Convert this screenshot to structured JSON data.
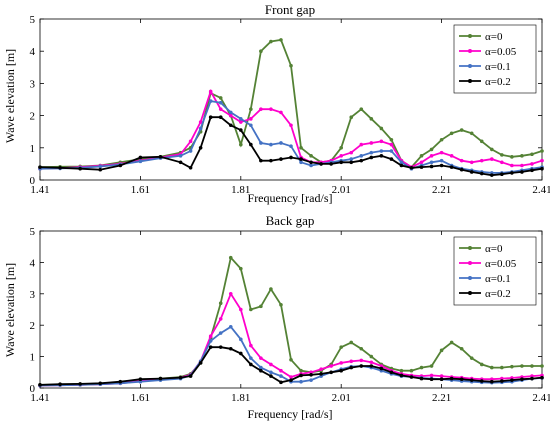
{
  "chart_data": [
    {
      "type": "line",
      "title": "Front gap",
      "xlabel": "Frequency [rad/s]",
      "ylabel": "Wave elevation [m]",
      "xlim": [
        1.41,
        2.41
      ],
      "ylim": [
        0,
        5
      ],
      "xticks": [
        "1.41",
        "1.61",
        "1.81",
        "2.01",
        "2.21",
        "2.41"
      ],
      "yticks": [
        "0",
        "1",
        "2",
        "3",
        "4",
        "5"
      ],
      "legend_position": "top-right",
      "x": [
        1.41,
        1.45,
        1.49,
        1.53,
        1.57,
        1.61,
        1.65,
        1.69,
        1.71,
        1.73,
        1.75,
        1.77,
        1.79,
        1.81,
        1.83,
        1.85,
        1.87,
        1.89,
        1.91,
        1.93,
        1.95,
        1.97,
        1.99,
        2.01,
        2.03,
        2.05,
        2.07,
        2.09,
        2.11,
        2.13,
        2.15,
        2.17,
        2.19,
        2.21,
        2.23,
        2.25,
        2.27,
        2.29,
        2.31,
        2.33,
        2.35,
        2.37,
        2.39,
        2.41
      ],
      "series": [
        {
          "name": "α=0",
          "color": "#548235",
          "values": [
            0.4,
            0.41,
            0.42,
            0.45,
            0.55,
            0.65,
            0.72,
            0.85,
            1.0,
            1.5,
            2.7,
            2.55,
            2.0,
            1.1,
            2.2,
            4.0,
            4.3,
            4.35,
            3.55,
            1.0,
            0.75,
            0.55,
            0.6,
            1.0,
            1.95,
            2.2,
            1.9,
            1.6,
            1.25,
            0.6,
            0.4,
            0.75,
            0.95,
            1.25,
            1.45,
            1.55,
            1.45,
            1.2,
            0.95,
            0.78,
            0.72,
            0.75,
            0.8,
            0.9
          ]
        },
        {
          "name": "α=0.05",
          "color": "#ff00cc",
          "values": [
            0.35,
            0.37,
            0.4,
            0.44,
            0.5,
            0.6,
            0.7,
            0.8,
            1.2,
            1.8,
            2.75,
            2.2,
            2.0,
            1.8,
            1.9,
            2.2,
            2.2,
            2.1,
            1.7,
            0.7,
            0.55,
            0.55,
            0.6,
            0.75,
            0.85,
            1.1,
            1.15,
            1.2,
            1.1,
            0.6,
            0.4,
            0.55,
            0.75,
            0.85,
            0.75,
            0.6,
            0.55,
            0.6,
            0.65,
            0.55,
            0.45,
            0.45,
            0.5,
            0.6
          ]
        },
        {
          "name": "α=0.1",
          "color": "#4472c4",
          "values": [
            0.35,
            0.36,
            0.38,
            0.42,
            0.48,
            0.58,
            0.68,
            0.75,
            0.9,
            1.6,
            2.45,
            2.4,
            2.1,
            1.9,
            1.7,
            1.15,
            1.1,
            1.15,
            1.05,
            0.55,
            0.45,
            0.5,
            0.55,
            0.6,
            0.65,
            0.75,
            0.85,
            0.9,
            0.9,
            0.55,
            0.35,
            0.45,
            0.55,
            0.6,
            0.45,
            0.35,
            0.3,
            0.25,
            0.22,
            0.22,
            0.25,
            0.3,
            0.35,
            0.4
          ]
        },
        {
          "name": "α=0.2",
          "color": "#000000",
          "values": [
            0.4,
            0.38,
            0.35,
            0.32,
            0.45,
            0.7,
            0.72,
            0.55,
            0.38,
            1.0,
            1.95,
            1.95,
            1.7,
            1.55,
            1.1,
            0.6,
            0.6,
            0.65,
            0.7,
            0.65,
            0.55,
            0.5,
            0.5,
            0.55,
            0.55,
            0.6,
            0.7,
            0.75,
            0.65,
            0.45,
            0.38,
            0.4,
            0.42,
            0.45,
            0.4,
            0.32,
            0.25,
            0.2,
            0.15,
            0.18,
            0.22,
            0.25,
            0.3,
            0.35
          ]
        }
      ]
    },
    {
      "type": "line",
      "title": "Back gap",
      "xlabel": "Frequency [rad/s]",
      "ylabel": "Wave elevation [m]",
      "xlim": [
        1.41,
        2.41
      ],
      "ylim": [
        0,
        5
      ],
      "xticks": [
        "1.41",
        "1.61",
        "1.81",
        "2.01",
        "2.21",
        "2.41"
      ],
      "yticks": [
        "0",
        "1",
        "2",
        "3",
        "4",
        "5"
      ],
      "legend_position": "top-right",
      "x": [
        1.41,
        1.45,
        1.49,
        1.53,
        1.57,
        1.61,
        1.65,
        1.69,
        1.71,
        1.73,
        1.75,
        1.77,
        1.79,
        1.81,
        1.83,
        1.85,
        1.87,
        1.89,
        1.91,
        1.93,
        1.95,
        1.97,
        1.99,
        2.01,
        2.03,
        2.05,
        2.07,
        2.09,
        2.11,
        2.13,
        2.15,
        2.17,
        2.19,
        2.21,
        2.23,
        2.25,
        2.27,
        2.29,
        2.31,
        2.33,
        2.35,
        2.37,
        2.39,
        2.41
      ],
      "series": [
        {
          "name": "α=0",
          "color": "#548235",
          "values": [
            0.1,
            0.11,
            0.12,
            0.14,
            0.18,
            0.25,
            0.3,
            0.35,
            0.45,
            0.8,
            1.6,
            2.7,
            4.15,
            3.8,
            2.5,
            2.6,
            3.15,
            2.65,
            0.9,
            0.55,
            0.5,
            0.55,
            0.75,
            1.3,
            1.45,
            1.25,
            1.0,
            0.75,
            0.62,
            0.55,
            0.55,
            0.65,
            0.7,
            1.2,
            1.45,
            1.25,
            0.95,
            0.75,
            0.65,
            0.65,
            0.68,
            0.7,
            0.7,
            0.7
          ]
        },
        {
          "name": "α=0.05",
          "color": "#ff00cc",
          "values": [
            0.08,
            0.09,
            0.1,
            0.12,
            0.15,
            0.22,
            0.28,
            0.33,
            0.42,
            0.85,
            1.65,
            2.2,
            3.0,
            2.5,
            1.35,
            0.95,
            0.75,
            0.55,
            0.35,
            0.45,
            0.5,
            0.6,
            0.7,
            0.8,
            0.85,
            0.88,
            0.82,
            0.7,
            0.55,
            0.45,
            0.4,
            0.38,
            0.4,
            0.38,
            0.35,
            0.33,
            0.3,
            0.28,
            0.28,
            0.3,
            0.32,
            0.35,
            0.38,
            0.4
          ]
        },
        {
          "name": "α=0.1",
          "color": "#4472c4",
          "values": [
            0.08,
            0.09,
            0.1,
            0.12,
            0.15,
            0.2,
            0.25,
            0.3,
            0.4,
            0.85,
            1.5,
            1.75,
            1.95,
            1.55,
            0.95,
            0.65,
            0.5,
            0.38,
            0.2,
            0.2,
            0.25,
            0.38,
            0.5,
            0.6,
            0.68,
            0.7,
            0.65,
            0.55,
            0.45,
            0.38,
            0.35,
            0.32,
            0.3,
            0.28,
            0.25,
            0.22,
            0.2,
            0.18,
            0.17,
            0.18,
            0.2,
            0.25,
            0.3,
            0.32
          ]
        },
        {
          "name": "α=0.2",
          "color": "#000000",
          "values": [
            0.1,
            0.12,
            0.13,
            0.15,
            0.2,
            0.28,
            0.3,
            0.33,
            0.38,
            0.8,
            1.3,
            1.3,
            1.25,
            1.1,
            0.75,
            0.55,
            0.38,
            0.18,
            0.25,
            0.4,
            0.42,
            0.45,
            0.5,
            0.55,
            0.65,
            0.7,
            0.7,
            0.62,
            0.5,
            0.4,
            0.35,
            0.3,
            0.28,
            0.28,
            0.3,
            0.28,
            0.25,
            0.22,
            0.2,
            0.22,
            0.25,
            0.28,
            0.3,
            0.33
          ]
        }
      ]
    }
  ]
}
